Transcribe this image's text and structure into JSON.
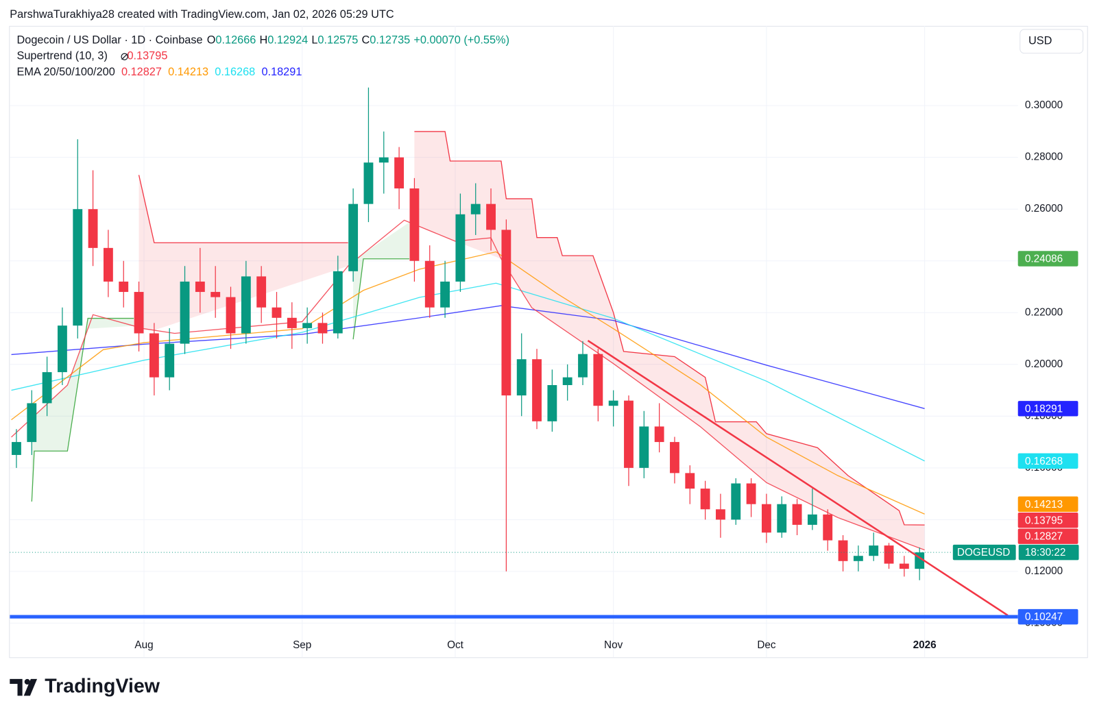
{
  "header": {
    "watermark": "ParshwaTurakhiya28 created with TradingView.com, Jan 02, 2026 05:29 UTC"
  },
  "currency_button": "USD",
  "brand": "TradingView",
  "chart_data": {
    "type": "candlestick",
    "title": "Dogecoin / US Dollar · 1D · Coinbase",
    "legend_ohlc": [
      {
        "label": "O",
        "value": 0.12666
      },
      {
        "label": "H",
        "value": 0.12924
      },
      {
        "label": "L",
        "value": 0.12575
      },
      {
        "label": "C",
        "value": 0.12735
      }
    ],
    "change": "+0.00070 (+0.55%)",
    "up_color": "#089981",
    "down_color": "#f23645",
    "x": [
      -25,
      -22,
      -19,
      -16,
      -13,
      -10,
      -7,
      -4,
      -1,
      2,
      5,
      8,
      11,
      14,
      17,
      20,
      23,
      26,
      29,
      32,
      35,
      38,
      41,
      44,
      47,
      50,
      53,
      56,
      59,
      62,
      65,
      68,
      71,
      74,
      77,
      80,
      83,
      86,
      89,
      92,
      95,
      98,
      101,
      104,
      107,
      110,
      113,
      116,
      119,
      122,
      125,
      128,
      131,
      134,
      137,
      140,
      143,
      146,
      149,
      152
    ],
    "open": [
      0.165,
      0.17,
      0.185,
      0.197,
      0.215,
      0.26,
      0.245,
      0.232,
      0.228,
      0.212,
      0.195,
      0.208,
      0.232,
      0.228,
      0.226,
      0.212,
      0.234,
      0.222,
      0.218,
      0.214,
      0.216,
      0.212,
      0.236,
      0.262,
      0.278,
      0.28,
      0.268,
      0.24,
      0.222,
      0.232,
      0.258,
      0.262,
      0.252,
      0.188,
      0.202,
      0.178,
      0.192,
      0.195,
      0.204,
      0.184,
      0.186,
      0.16,
      0.176,
      0.17,
      0.158,
      0.152,
      0.144,
      0.14,
      0.154,
      0.146,
      0.135,
      0.146,
      0.138,
      0.142,
      0.132,
      0.124,
      0.126,
      0.13,
      0.123,
      0.121
    ],
    "high": [
      0.175,
      0.19,
      0.203,
      0.222,
      0.287,
      0.275,
      0.252,
      0.24,
      0.232,
      0.216,
      0.214,
      0.238,
      0.245,
      0.238,
      0.23,
      0.24,
      0.238,
      0.228,
      0.224,
      0.222,
      0.22,
      0.242,
      0.268,
      0.307,
      0.29,
      0.284,
      0.272,
      0.246,
      0.24,
      0.266,
      0.27,
      0.268,
      0.256,
      0.212,
      0.206,
      0.198,
      0.2,
      0.209,
      0.206,
      0.19,
      0.188,
      0.182,
      0.185,
      0.172,
      0.161,
      0.155,
      0.15,
      0.156,
      0.156,
      0.15,
      0.149,
      0.148,
      0.152,
      0.144,
      0.134,
      0.13,
      0.135,
      0.131,
      0.126,
      0.12924
    ],
    "low": [
      0.16,
      0.165,
      0.18,
      0.192,
      0.21,
      0.238,
      0.226,
      0.222,
      0.205,
      0.188,
      0.19,
      0.204,
      0.22,
      0.218,
      0.206,
      0.208,
      0.216,
      0.21,
      0.206,
      0.208,
      0.208,
      0.21,
      0.232,
      0.255,
      0.266,
      0.26,
      0.232,
      0.218,
      0.218,
      0.228,
      0.25,
      0.244,
      0.12,
      0.18,
      0.175,
      0.174,
      0.186,
      0.192,
      0.178,
      0.176,
      0.153,
      0.156,
      0.166,
      0.154,
      0.146,
      0.14,
      0.133,
      0.138,
      0.141,
      0.131,
      0.133,
      0.134,
      0.136,
      0.128,
      0.12,
      0.12,
      0.124,
      0.121,
      0.118,
      0.1166
    ],
    "close": [
      0.17,
      0.185,
      0.197,
      0.215,
      0.26,
      0.245,
      0.232,
      0.228,
      0.212,
      0.195,
      0.208,
      0.232,
      0.228,
      0.226,
      0.212,
      0.234,
      0.222,
      0.218,
      0.214,
      0.216,
      0.212,
      0.236,
      0.262,
      0.278,
      0.28,
      0.268,
      0.24,
      0.222,
      0.232,
      0.258,
      0.262,
      0.252,
      0.188,
      0.202,
      0.178,
      0.192,
      0.195,
      0.204,
      0.184,
      0.186,
      0.16,
      0.176,
      0.17,
      0.158,
      0.152,
      0.144,
      0.14,
      0.154,
      0.146,
      0.135,
      0.146,
      0.138,
      0.142,
      0.132,
      0.124,
      0.126,
      0.13,
      0.123,
      0.121,
      0.12735
    ],
    "xlim": [
      -26.3,
      170.6
    ],
    "xticks": [
      {
        "value": 0,
        "label": "Aug"
      },
      {
        "value": 31,
        "label": "Sep"
      },
      {
        "value": 61,
        "label": "Oct"
      },
      {
        "value": 92,
        "label": "Nov"
      },
      {
        "value": 122,
        "label": "Dec"
      },
      {
        "value": 153,
        "label": "2026"
      }
    ],
    "ylim": [
      0.0868,
      0.3308
    ],
    "yticks": [
      {
        "value": 0.1,
        "label": "0.10000"
      },
      {
        "value": 0.12,
        "label": "0.12000"
      },
      {
        "value": 0.14,
        "label": "0.14000"
      },
      {
        "value": 0.16,
        "label": "0.16000"
      },
      {
        "value": 0.18,
        "label": "0.18000"
      },
      {
        "value": 0.2,
        "label": "0.20000"
      },
      {
        "value": 0.22,
        "label": "0.22000"
      },
      {
        "value": 0.24,
        "label": "0.24000"
      },
      {
        "value": 0.26,
        "label": "0.26000"
      },
      {
        "value": 0.28,
        "label": "0.28000"
      },
      {
        "value": 0.3,
        "label": "0.30000"
      }
    ],
    "grid": true,
    "supertrend": {
      "name": "Supertrend (10, 3)",
      "value": 0.13795,
      "color": "#f23645",
      "pieces": [
        {
          "color": "#4caf50",
          "x": [
            -22,
            -21.5,
            -15,
            -11,
            -2
          ],
          "values": [
            0.147,
            0.1665,
            0.1665,
            0.2178,
            0.2178
          ]
        },
        {
          "color": "#f23645",
          "x": [
            -1,
            2,
            40
          ],
          "values": [
            0.2732,
            0.247,
            0.247
          ]
        },
        {
          "color": "#4caf50",
          "x": [
            41,
            43,
            52
          ],
          "values": [
            0.2097,
            0.2408,
            0.2408
          ]
        },
        {
          "color": "#f23645",
          "x": [
            53,
            59,
            60,
            70,
            71,
            76,
            77,
            81,
            82,
            88,
            92,
            94,
            104,
            110,
            112,
            120,
            122,
            128,
            132,
            138,
            148,
            149,
            153
          ],
          "values": [
            0.29,
            0.29,
            0.2786,
            0.2786,
            0.264,
            0.264,
            0.249,
            0.249,
            0.242,
            0.242,
            0.22,
            0.205,
            0.203,
            0.195,
            0.1778,
            0.1778,
            0.1732,
            0.17,
            0.1678,
            0.157,
            0.1435,
            0.138,
            0.13795
          ]
        }
      ]
    },
    "ema": {
      "name": "EMA 20/50/100/200",
      "series": [
        {
          "color": "#f23645",
          "last": 0.12827,
          "x": [
            -26,
            -15,
            -10,
            0,
            6,
            31,
            40,
            51,
            61,
            68,
            70,
            76,
            92,
            109,
            122,
            136,
            153
          ],
          "values": [
            0.1719,
            0.192,
            0.2192,
            0.2138,
            0.212,
            0.2165,
            0.238,
            0.2557,
            0.2476,
            0.2489,
            0.2408,
            0.2219,
            0.2003,
            0.176,
            0.1543,
            0.1408,
            0.12827
          ]
        },
        {
          "color": "#ff9800",
          "last": 0.14213,
          "x": [
            -26,
            -8,
            0,
            31,
            43,
            54,
            69,
            81,
            92,
            109,
            122,
            136,
            153
          ],
          "values": [
            0.1786,
            0.2057,
            0.2084,
            0.2138,
            0.2286,
            0.2368,
            0.2435,
            0.2273,
            0.2138,
            0.1922,
            0.1719,
            0.157,
            0.14213
          ]
        },
        {
          "color": "#1ee0f0",
          "last": 0.16268,
          "x": [
            -26,
            0,
            31,
            54,
            69,
            92,
            122,
            153
          ],
          "values": [
            0.19,
            0.2016,
            0.2124,
            0.2259,
            0.2314,
            0.2178,
            0.1935,
            0.16268
          ]
        },
        {
          "color": "#2424ff",
          "last": 0.18291,
          "x": [
            -26,
            0,
            31,
            54,
            70,
            92,
            122,
            153
          ],
          "values": [
            0.2038,
            0.2078,
            0.2116,
            0.218,
            0.2227,
            0.217,
            0.1997,
            0.18291
          ]
        }
      ]
    },
    "trendline": {
      "color": "#f23645",
      "x": [
        87,
        169.3
      ],
      "values": [
        0.2092,
        0.103
      ]
    },
    "support_line": {
      "color": "#2962ff",
      "value": 0.10247
    },
    "price_labels": [
      {
        "value": 0.24086,
        "color": "#4caf50"
      }
    ],
    "last_price": {
      "value": 0.12735,
      "symbol": "DOGEUSD",
      "countdown": "18:30:22",
      "color": "#089981"
    }
  }
}
